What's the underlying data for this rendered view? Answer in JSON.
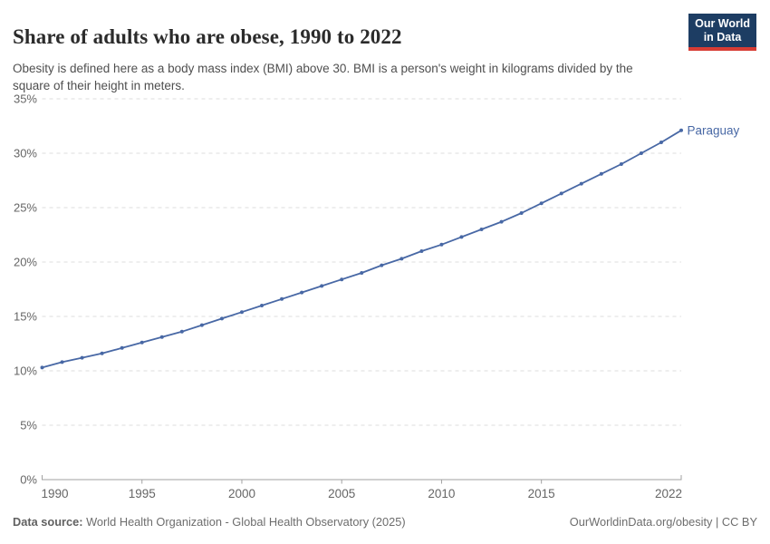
{
  "header": {
    "title": "Share of adults who are obese, 1990 to 2022",
    "subtitle": "Obesity is defined here as a body mass index (BMI) above 30. BMI is a person's weight in kilograms divided by the square of their height in meters.",
    "logo": {
      "line1": "Our World",
      "line2": "in Data"
    }
  },
  "chart_data": {
    "type": "line",
    "title": "Share of adults who are obese, 1990 to 2022",
    "xlabel": "",
    "ylabel": "",
    "xlim": [
      1990,
      2022
    ],
    "ylim": [
      0,
      35
    ],
    "grid": "horizontal-dashed",
    "legend_position": "end-of-line-label",
    "x_ticks": [
      1990,
      1995,
      2000,
      2005,
      2010,
      2015,
      2022
    ],
    "y_ticks": [
      0,
      5,
      10,
      15,
      20,
      25,
      30,
      35
    ],
    "y_tick_suffix": "%",
    "series": [
      {
        "name": "Paraguay",
        "x": [
          1990,
          1991,
          1992,
          1993,
          1994,
          1995,
          1996,
          1997,
          1998,
          1999,
          2000,
          2001,
          2002,
          2003,
          2004,
          2005,
          2006,
          2007,
          2008,
          2009,
          2010,
          2011,
          2012,
          2013,
          2014,
          2015,
          2016,
          2017,
          2018,
          2019,
          2020,
          2021,
          2022
        ],
        "values": [
          10.3,
          10.8,
          11.2,
          11.6,
          12.1,
          12.6,
          13.1,
          13.6,
          14.2,
          14.8,
          15.4,
          16.0,
          16.6,
          17.2,
          17.8,
          18.4,
          19.0,
          19.7,
          20.3,
          21.0,
          21.6,
          22.3,
          23.0,
          23.7,
          24.5,
          25.4,
          26.3,
          27.2,
          28.1,
          29.0,
          30.0,
          31.0,
          32.1
        ]
      }
    ]
  },
  "footer": {
    "source_label": "Data source:",
    "source_text": " World Health Organization - Global Health Observatory (2025)",
    "rights": "OurWorldinData.org/obesity | CC BY"
  },
  "colors": {
    "series_blue": "#4868A5",
    "grid": "#dcdcdc",
    "axis": "#a1a1a1",
    "tick_text": "#666666",
    "logo_navy": "#1d3d63",
    "logo_red": "#d73c34",
    "title_text": "#2b2b2b",
    "subtitle_text": "#4f4f4f"
  }
}
